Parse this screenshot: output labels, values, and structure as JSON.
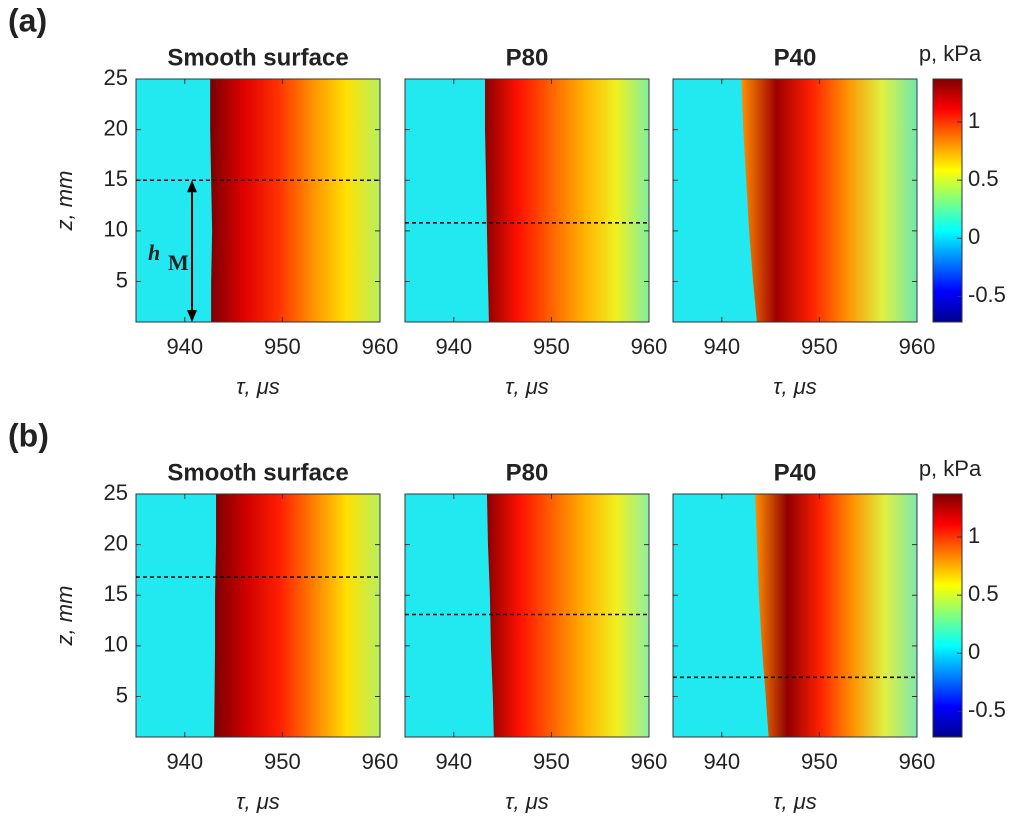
{
  "figure": {
    "labels": [
      "(a)",
      "(b)"
    ],
    "colorbar": {
      "label": "p, kPa",
      "clim": [
        -0.72,
        1.37
      ],
      "ticks": [
        -0.5,
        0,
        0.5,
        1
      ],
      "colormap": [
        "#00008f",
        "#0000ff",
        "#0080ff",
        "#00ffff",
        "#80ff80",
        "#ffff00",
        "#ff8000",
        "#ff0000",
        "#800000"
      ]
    },
    "background_color": "#22e8f0"
  },
  "chart_data": [
    {
      "type": "heatmap",
      "title": "Smooth surface",
      "xlabel": "τ, μs",
      "ylabel": "z, mm",
      "xlim": [
        935,
        960
      ],
      "xticks": [
        940,
        950,
        960
      ],
      "ylim": [
        1,
        25
      ],
      "yticks": [
        5,
        10,
        15,
        20,
        25
      ],
      "front": {
        "z": [
          1,
          5,
          10,
          15,
          20,
          25
        ],
        "tau": [
          942.7,
          942.7,
          942.8,
          942.7,
          942.6,
          942.6
        ]
      },
      "colors": [
        "#7a0000",
        "#e00000",
        "#ff3000",
        "#ff9000",
        "#ffe000",
        "#b8f060"
      ],
      "h_line": 15,
      "annotation": "h",
      "annotation_sub": "M"
    },
    {
      "type": "heatmap",
      "title": "P80",
      "xlabel": "τ, μs",
      "xlim": [
        935,
        960
      ],
      "xticks": [
        940,
        950,
        960
      ],
      "ylim": [
        1,
        25
      ],
      "yticks": [
        5,
        10,
        15,
        20,
        25
      ],
      "front": {
        "z": [
          1,
          5,
          10,
          15,
          20,
          25
        ],
        "tau": [
          943.6,
          943.5,
          943.4,
          943.3,
          943.2,
          943.2
        ]
      },
      "colors": [
        "#8a0000",
        "#ff1000",
        "#ff6000",
        "#ffb000",
        "#f0f020",
        "#80f0a0"
      ],
      "h_line": 10.8
    },
    {
      "type": "heatmap",
      "title": "P40",
      "xlabel": "τ, μs",
      "xlim": [
        935,
        960
      ],
      "xticks": [
        940,
        950,
        960
      ],
      "ylim": [
        1,
        25
      ],
      "yticks": [
        5,
        10,
        15,
        20,
        25
      ],
      "front": {
        "z": [
          1,
          5,
          10,
          15,
          20,
          25
        ],
        "tau": [
          943.6,
          943.2,
          942.8,
          942.5,
          942.2,
          942
        ]
      },
      "colors": [
        "#ff9000",
        "#a00000",
        "#ff2000",
        "#ff9000",
        "#e0f040",
        "#70e8b0"
      ]
    },
    {
      "type": "heatmap",
      "title": "Smooth surface",
      "xlabel": "τ, μs",
      "ylabel": "z, mm",
      "xlim": [
        935,
        960
      ],
      "xticks": [
        940,
        950,
        960
      ],
      "ylim": [
        1,
        25
      ],
      "yticks": [
        5,
        10,
        15,
        20,
        25
      ],
      "front": {
        "z": [
          1,
          5,
          10,
          15,
          20,
          25
        ],
        "tau": [
          943,
          943.05,
          943.1,
          943.1,
          943.2,
          943.2
        ]
      },
      "colors": [
        "#7a0000",
        "#d00000",
        "#ff2000",
        "#ff8000",
        "#ffe000",
        "#b8f060"
      ],
      "h_line": 16.8
    },
    {
      "type": "heatmap",
      "title": "P80",
      "xlabel": "τ, μs",
      "xlim": [
        935,
        960
      ],
      "xticks": [
        940,
        950,
        960
      ],
      "ylim": [
        1,
        25
      ],
      "yticks": [
        5,
        10,
        15,
        20,
        25
      ],
      "front": {
        "z": [
          1,
          5,
          10,
          15,
          20,
          25
        ],
        "tau": [
          944.1,
          944,
          943.8,
          943.7,
          943.5,
          943.4
        ]
      },
      "colors": [
        "#8a0000",
        "#ff1000",
        "#ff6000",
        "#ffb000",
        "#f0f020",
        "#90f0a0"
      ],
      "h_line": 13.1
    },
    {
      "type": "heatmap",
      "title": "P40",
      "xlabel": "τ, μs",
      "xlim": [
        935,
        960
      ],
      "xticks": [
        940,
        950,
        960
      ],
      "ylim": [
        1,
        25
      ],
      "yticks": [
        5,
        10,
        15,
        20,
        25
      ],
      "front": {
        "z": [
          1,
          5,
          10,
          15,
          20,
          25
        ],
        "tau": [
          944.8,
          944.5,
          944.1,
          943.8,
          943.6,
          943.4
        ]
      },
      "colors": [
        "#ff9000",
        "#900000",
        "#ff2000",
        "#ff9000",
        "#e0f040",
        "#80e8b0"
      ],
      "h_line": 6.9
    }
  ]
}
